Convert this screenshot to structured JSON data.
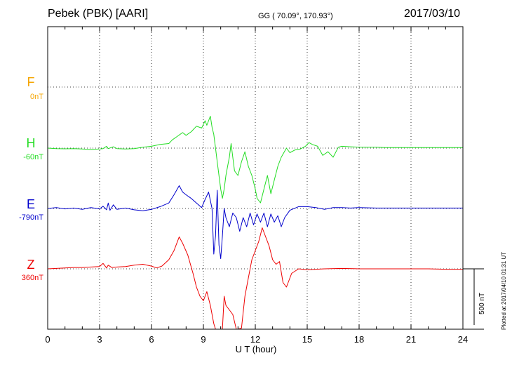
{
  "header": {
    "station": "Pebek (PBK)  [AARI]",
    "coords": "GG ( 70.09°, 170.93°)",
    "date": "2017/03/10"
  },
  "footer_note": "Plotted at 2017/04/10 01:31  UT",
  "chart_data": {
    "type": "line",
    "xlabel": "U T (hour)",
    "xlim": [
      0,
      24
    ],
    "xticks": [
      0,
      3,
      6,
      9,
      12,
      15,
      18,
      21,
      24
    ],
    "scale_bar": {
      "value_nT": 500,
      "label": "500 nT"
    },
    "grid": true,
    "series": [
      {
        "name": "F",
        "baseline": "0nT",
        "color": "#f5a500",
        "points": []
      },
      {
        "name": "H",
        "baseline": "-60nT",
        "color": "#22dd22",
        "points": [
          [
            0,
            0
          ],
          [
            0.5,
            -5
          ],
          [
            1,
            -8
          ],
          [
            1.5,
            -5
          ],
          [
            2,
            -10
          ],
          [
            2.5,
            -15
          ],
          [
            3,
            -10
          ],
          [
            3.2,
            -5
          ],
          [
            3.4,
            20
          ],
          [
            3.5,
            -5
          ],
          [
            3.8,
            15
          ],
          [
            4,
            -5
          ],
          [
            4.5,
            -10
          ],
          [
            5,
            -5
          ],
          [
            5.5,
            10
          ],
          [
            6,
            20
          ],
          [
            6.5,
            40
          ],
          [
            7,
            50
          ],
          [
            7.2,
            90
          ],
          [
            7.5,
            130
          ],
          [
            7.8,
            170
          ],
          [
            8,
            140
          ],
          [
            8.3,
            180
          ],
          [
            8.6,
            240
          ],
          [
            8.9,
            220
          ],
          [
            9,
            260
          ],
          [
            9.1,
            300
          ],
          [
            9.2,
            250
          ],
          [
            9.4,
            350
          ],
          [
            9.5,
            230
          ],
          [
            9.6,
            150
          ],
          [
            9.7,
            0
          ],
          [
            9.8,
            -150
          ],
          [
            9.9,
            -300
          ],
          [
            10.0,
            -450
          ],
          [
            10.1,
            -550
          ],
          [
            10.2,
            -450
          ],
          [
            10.3,
            -300
          ],
          [
            10.4,
            -200
          ],
          [
            10.5,
            -100
          ],
          [
            10.6,
            50
          ],
          [
            10.7,
            -100
          ],
          [
            10.8,
            -250
          ],
          [
            11,
            -300
          ],
          [
            11.2,
            -150
          ],
          [
            11.4,
            -40
          ],
          [
            11.6,
            -200
          ],
          [
            11.8,
            -300
          ],
          [
            12,
            -450
          ],
          [
            12.1,
            -550
          ],
          [
            12.3,
            -600
          ],
          [
            12.5,
            -450
          ],
          [
            12.7,
            -300
          ],
          [
            12.9,
            -500
          ],
          [
            13.1,
            -350
          ],
          [
            13.3,
            -200
          ],
          [
            13.5,
            -100
          ],
          [
            13.8,
            0
          ],
          [
            14,
            -50
          ],
          [
            14.3,
            -20
          ],
          [
            14.6,
            -10
          ],
          [
            14.9,
            20
          ],
          [
            15.1,
            60
          ],
          [
            15.3,
            40
          ],
          [
            15.6,
            20
          ],
          [
            15.9,
            -80
          ],
          [
            16.2,
            -40
          ],
          [
            16.5,
            -100
          ],
          [
            16.8,
            10
          ],
          [
            17,
            20
          ],
          [
            17.5,
            15
          ],
          [
            18,
            10
          ],
          [
            18.5,
            10
          ],
          [
            19,
            10
          ],
          [
            19.5,
            5
          ],
          [
            20,
            5
          ],
          [
            21,
            5
          ],
          [
            22,
            5
          ],
          [
            23,
            5
          ],
          [
            24,
            5
          ]
        ]
      },
      {
        "name": "E",
        "baseline": "-790nT",
        "color": "#0000cc",
        "points": [
          [
            0,
            0
          ],
          [
            0.5,
            10
          ],
          [
            1,
            -5
          ],
          [
            1.5,
            5
          ],
          [
            2,
            -10
          ],
          [
            2.5,
            10
          ],
          [
            3,
            -5
          ],
          [
            3.2,
            25
          ],
          [
            3.4,
            -15
          ],
          [
            3.5,
            60
          ],
          [
            3.6,
            -20
          ],
          [
            3.8,
            40
          ],
          [
            4,
            -10
          ],
          [
            4.5,
            5
          ],
          [
            5,
            -15
          ],
          [
            5.5,
            -25
          ],
          [
            6,
            -10
          ],
          [
            6.5,
            20
          ],
          [
            7,
            60
          ],
          [
            7.3,
            150
          ],
          [
            7.6,
            250
          ],
          [
            7.8,
            180
          ],
          [
            8,
            150
          ],
          [
            8.3,
            110
          ],
          [
            8.6,
            60
          ],
          [
            8.9,
            10
          ],
          [
            9.1,
            100
          ],
          [
            9.3,
            180
          ],
          [
            9.5,
            0
          ],
          [
            9.6,
            -500
          ],
          [
            9.7,
            -300
          ],
          [
            9.8,
            200
          ],
          [
            9.9,
            -400
          ],
          [
            10,
            -550
          ],
          [
            10.1,
            -300
          ],
          [
            10.2,
            0
          ],
          [
            10.3,
            -100
          ],
          [
            10.5,
            -200
          ],
          [
            10.7,
            -50
          ],
          [
            10.9,
            -100
          ],
          [
            11.1,
            -250
          ],
          [
            11.3,
            -100
          ],
          [
            11.5,
            -200
          ],
          [
            11.7,
            -50
          ],
          [
            11.9,
            -180
          ],
          [
            12.1,
            -60
          ],
          [
            12.3,
            -150
          ],
          [
            12.5,
            -50
          ],
          [
            12.7,
            -200
          ],
          [
            12.9,
            -60
          ],
          [
            13.1,
            -150
          ],
          [
            13.3,
            -80
          ],
          [
            13.5,
            -200
          ],
          [
            13.7,
            -100
          ],
          [
            14,
            -20
          ],
          [
            14.5,
            20
          ],
          [
            15,
            20
          ],
          [
            15.5,
            10
          ],
          [
            16,
            -10
          ],
          [
            16.5,
            10
          ],
          [
            17,
            10
          ],
          [
            17.5,
            5
          ],
          [
            18,
            10
          ],
          [
            19,
            5
          ],
          [
            20,
            5
          ],
          [
            21,
            5
          ],
          [
            22,
            5
          ],
          [
            23,
            5
          ],
          [
            24,
            5
          ]
        ]
      },
      {
        "name": "Z",
        "baseline": "360nT",
        "color": "#ee0000",
        "points": [
          [
            0,
            0
          ],
          [
            0.5,
            5
          ],
          [
            1,
            10
          ],
          [
            1.5,
            15
          ],
          [
            2,
            15
          ],
          [
            2.5,
            20
          ],
          [
            3,
            25
          ],
          [
            3.2,
            60
          ],
          [
            3.4,
            10
          ],
          [
            3.5,
            40
          ],
          [
            3.7,
            15
          ],
          [
            4,
            20
          ],
          [
            4.5,
            25
          ],
          [
            5,
            40
          ],
          [
            5.5,
            50
          ],
          [
            6,
            30
          ],
          [
            6.3,
            10
          ],
          [
            6.6,
            30
          ],
          [
            7,
            100
          ],
          [
            7.3,
            200
          ],
          [
            7.6,
            350
          ],
          [
            7.8,
            280
          ],
          [
            8.1,
            150
          ],
          [
            8.4,
            -50
          ],
          [
            8.6,
            -200
          ],
          [
            8.8,
            -300
          ],
          [
            9,
            -350
          ],
          [
            9.2,
            -250
          ],
          [
            9.4,
            -400
          ],
          [
            9.6,
            -600
          ],
          [
            9.7,
            -750
          ],
          [
            9.8,
            -900
          ],
          [
            9.9,
            -1100
          ],
          [
            10.0,
            -1000
          ],
          [
            10.1,
            -700
          ],
          [
            10.2,
            -300
          ],
          [
            10.3,
            -400
          ],
          [
            10.5,
            -450
          ],
          [
            10.7,
            -500
          ],
          [
            10.9,
            -700
          ],
          [
            11,
            -800
          ],
          [
            11.2,
            -650
          ],
          [
            11.4,
            -300
          ],
          [
            11.6,
            -100
          ],
          [
            11.8,
            100
          ],
          [
            12,
            200
          ],
          [
            12.2,
            300
          ],
          [
            12.4,
            450
          ],
          [
            12.6,
            350
          ],
          [
            12.8,
            250
          ],
          [
            13,
            100
          ],
          [
            13.2,
            50
          ],
          [
            13.4,
            80
          ],
          [
            13.6,
            -150
          ],
          [
            13.8,
            -200
          ],
          [
            14.1,
            -50
          ],
          [
            14.5,
            0
          ],
          [
            15,
            -10
          ],
          [
            15.5,
            -5
          ],
          [
            16,
            0
          ],
          [
            17,
            5
          ],
          [
            18,
            0
          ],
          [
            19,
            0
          ],
          [
            20,
            0
          ],
          [
            21,
            0
          ],
          [
            22,
            0
          ],
          [
            23,
            -5
          ],
          [
            24,
            -5
          ]
        ]
      }
    ]
  }
}
